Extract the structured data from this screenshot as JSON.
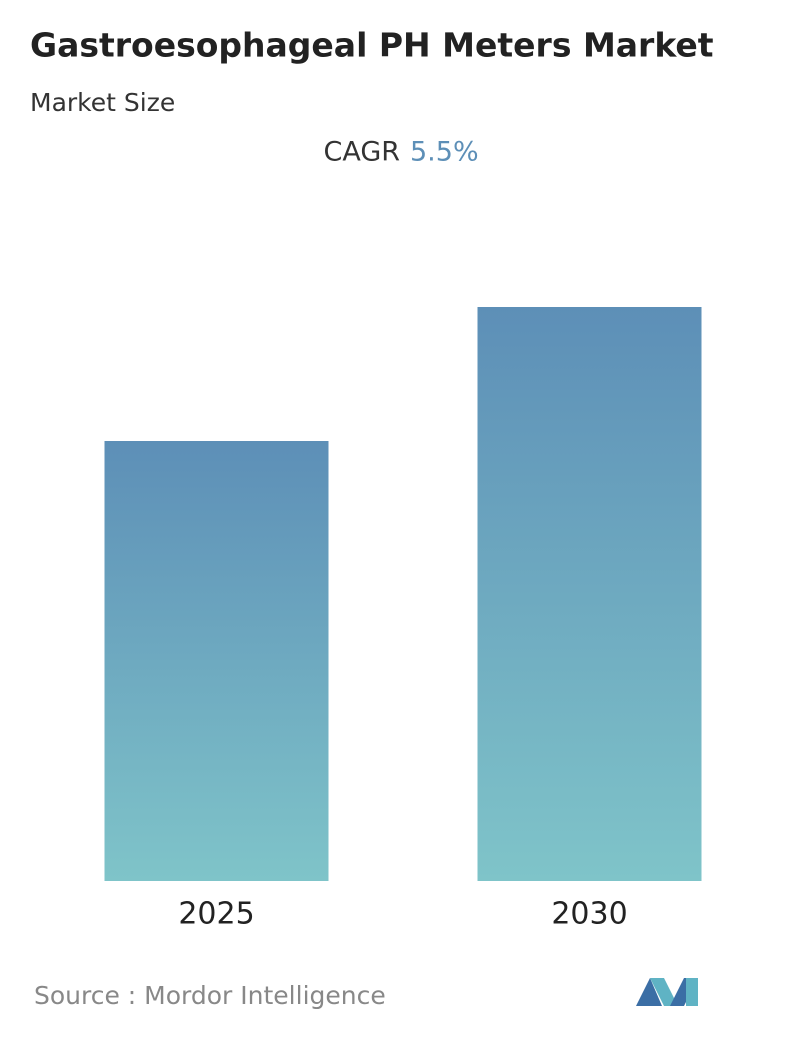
{
  "chart_data": {
    "type": "bar",
    "title": "Gastroesophageal PH Meters Market",
    "subtitle": "Market Size",
    "cagr_label": "CAGR",
    "cagr_value": "5.5%",
    "categories": [
      "2025",
      "2030"
    ],
    "values": [
      440,
      574
    ],
    "color_top": "#5d8fb7",
    "color_bottom": "#7fc4c9",
    "source": "Source :  Mordor Intelligence"
  }
}
